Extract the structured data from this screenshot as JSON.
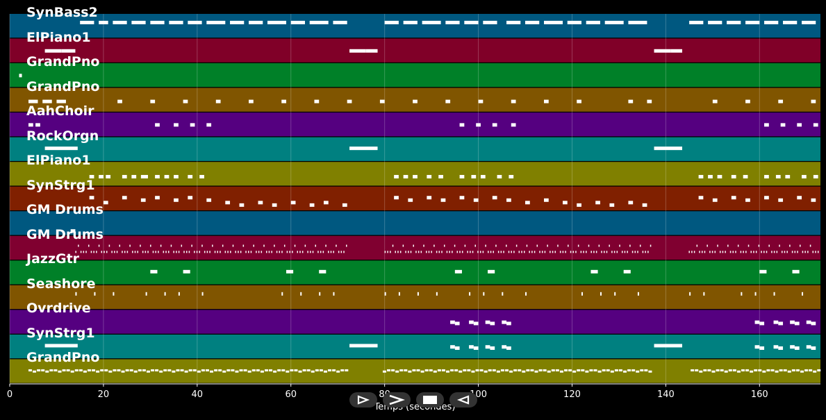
{
  "chart_data": {
    "type": "piano-roll",
    "xlabel": "Temps (secondes)",
    "xlim": [
      0,
      173
    ],
    "xticks": [
      0,
      20,
      40,
      60,
      80,
      100,
      120,
      140,
      160
    ],
    "grid": true,
    "tracks": [
      {
        "name": "SynBass2",
        "color": "#005880",
        "notes": [
          [
            15,
            18,
            0.65
          ],
          [
            19,
            21,
            0.65
          ],
          [
            22,
            25,
            0.65
          ],
          [
            26,
            29,
            0.65
          ],
          [
            30,
            33,
            0.65
          ],
          [
            34,
            37,
            0.65
          ],
          [
            38,
            41,
            0.65
          ],
          [
            42,
            46,
            0.65
          ],
          [
            47,
            50,
            0.65
          ],
          [
            51,
            54,
            0.65
          ],
          [
            55,
            59,
            0.65
          ],
          [
            60,
            63,
            0.65
          ],
          [
            64,
            68,
            0.65
          ],
          [
            69,
            72,
            0.65
          ],
          [
            80,
            83,
            0.65
          ],
          [
            84,
            87,
            0.65
          ],
          [
            88,
            92,
            0.65
          ],
          [
            93,
            96,
            0.65
          ],
          [
            97,
            100,
            0.65
          ],
          [
            101,
            104,
            0.65
          ],
          [
            106,
            109,
            0.65
          ],
          [
            110,
            113,
            0.65
          ],
          [
            114,
            118,
            0.65
          ],
          [
            119,
            122,
            0.65
          ],
          [
            123,
            126,
            0.65
          ],
          [
            127,
            131,
            0.65
          ],
          [
            132,
            136,
            0.65
          ],
          [
            145,
            148,
            0.65
          ],
          [
            149,
            152,
            0.65
          ],
          [
            153,
            156,
            0.65
          ],
          [
            157,
            160,
            0.65
          ],
          [
            161,
            164,
            0.65
          ],
          [
            165,
            168,
            0.65
          ],
          [
            169,
            172,
            0.65
          ]
        ]
      },
      {
        "name": "ElPiano1",
        "color": "#800028",
        "notes": [
          [
            7.5,
            11,
            0.5
          ],
          [
            11,
            14,
            0.5
          ],
          [
            72.5,
            76,
            0.5
          ],
          [
            76,
            78.5,
            0.5
          ],
          [
            137.5,
            141,
            0.5
          ],
          [
            141,
            143.5,
            0.5
          ]
        ]
      },
      {
        "name": "GrandPno",
        "color": "#008028",
        "notes": [
          [
            2,
            2.6,
            0.5
          ]
        ]
      },
      {
        "name": "GrandPno",
        "color": "#805500",
        "notes": [
          [
            4,
            6,
            0.45
          ],
          [
            7,
            9,
            0.45
          ],
          [
            10,
            12,
            0.45
          ],
          [
            23,
            24,
            0.45
          ],
          [
            30,
            31,
            0.45
          ],
          [
            37,
            38,
            0.45
          ],
          [
            44,
            45,
            0.45
          ],
          [
            51,
            52,
            0.45
          ],
          [
            58,
            59,
            0.45
          ],
          [
            65,
            66,
            0.45
          ],
          [
            72,
            73,
            0.45
          ],
          [
            79,
            80,
            0.45
          ],
          [
            86,
            87,
            0.45
          ],
          [
            93,
            94,
            0.45
          ],
          [
            100,
            101,
            0.45
          ],
          [
            107,
            108,
            0.45
          ],
          [
            114,
            115,
            0.45
          ],
          [
            121,
            122,
            0.45
          ],
          [
            132,
            133,
            0.45
          ],
          [
            136,
            137,
            0.45
          ],
          [
            150,
            151,
            0.45
          ],
          [
            157,
            158,
            0.45
          ],
          [
            164,
            165,
            0.45
          ],
          [
            171,
            172,
            0.45
          ]
        ]
      },
      {
        "name": "AahChoir",
        "color": "#550080",
        "notes": [
          [
            4,
            5,
            0.5
          ],
          [
            5.5,
            6.5,
            0.5
          ],
          [
            31,
            32,
            0.5
          ],
          [
            35,
            36,
            0.5
          ],
          [
            38.5,
            39.5,
            0.5
          ],
          [
            42,
            43,
            0.5
          ],
          [
            96,
            97,
            0.5
          ],
          [
            99.5,
            100.5,
            0.5
          ],
          [
            103,
            104,
            0.5
          ],
          [
            107,
            108,
            0.5
          ],
          [
            161,
            162,
            0.5
          ],
          [
            164.5,
            165.5,
            0.5
          ],
          [
            168,
            169,
            0.5
          ],
          [
            171.5,
            172.5,
            0.5
          ]
        ]
      },
      {
        "name": "RockOrgn",
        "color": "#008080",
        "notes": [
          [
            7.5,
            14.5,
            0.55
          ],
          [
            72.5,
            78.5,
            0.55
          ],
          [
            137.5,
            143.5,
            0.55
          ]
        ]
      },
      {
        "name": "ElPiano1",
        "color": "#808000",
        "notes": [
          [
            17,
            18,
            0.4
          ],
          [
            19,
            20,
            0.4
          ],
          [
            20.5,
            21.5,
            0.4
          ],
          [
            24,
            25,
            0.4
          ],
          [
            26,
            27,
            0.4
          ],
          [
            28,
            29.5,
            0.4
          ],
          [
            31,
            32,
            0.4
          ],
          [
            33,
            34,
            0.4
          ],
          [
            35,
            36,
            0.4
          ],
          [
            38,
            39,
            0.4
          ],
          [
            40.5,
            41.5,
            0.4
          ],
          [
            82,
            83,
            0.4
          ],
          [
            84,
            85,
            0.4
          ],
          [
            86,
            87,
            0.4
          ],
          [
            89,
            90,
            0.4
          ],
          [
            91.5,
            92.5,
            0.4
          ],
          [
            96,
            97,
            0.4
          ],
          [
            98.5,
            99.5,
            0.4
          ],
          [
            100.5,
            101.5,
            0.4
          ],
          [
            104,
            105,
            0.4
          ],
          [
            106.5,
            107.5,
            0.4
          ],
          [
            147,
            148,
            0.4
          ],
          [
            149,
            150,
            0.4
          ],
          [
            151,
            152,
            0.4
          ],
          [
            154,
            155,
            0.4
          ],
          [
            156.5,
            157.5,
            0.4
          ],
          [
            161,
            162,
            0.4
          ],
          [
            163.5,
            164.5,
            0.4
          ],
          [
            165.5,
            166.5,
            0.4
          ],
          [
            169,
            170,
            0.4
          ],
          [
            171.5,
            172.5,
            0.4
          ]
        ]
      },
      {
        "name": "SynStrg1",
        "color": "#802000",
        "notes": [
          [
            17,
            18,
            0.55
          ],
          [
            20,
            21,
            0.35
          ],
          [
            24,
            25,
            0.55
          ],
          [
            28,
            29,
            0.45
          ],
          [
            31,
            32,
            0.55
          ],
          [
            35,
            36,
            0.45
          ],
          [
            38,
            39,
            0.55
          ],
          [
            42,
            43,
            0.45
          ],
          [
            46,
            47,
            0.35
          ],
          [
            49,
            50,
            0.25
          ],
          [
            53,
            54,
            0.35
          ],
          [
            56,
            57,
            0.25
          ],
          [
            60,
            61,
            0.35
          ],
          [
            64,
            65,
            0.25
          ],
          [
            67,
            68,
            0.35
          ],
          [
            71,
            72,
            0.25
          ],
          [
            82,
            83,
            0.55
          ],
          [
            85,
            86,
            0.45
          ],
          [
            89,
            90,
            0.55
          ],
          [
            92,
            93,
            0.45
          ],
          [
            96,
            97,
            0.55
          ],
          [
            99,
            100,
            0.45
          ],
          [
            103,
            104,
            0.55
          ],
          [
            106,
            107,
            0.45
          ],
          [
            110,
            111,
            0.35
          ],
          [
            114,
            115,
            0.45
          ],
          [
            118,
            119,
            0.35
          ],
          [
            121,
            122,
            0.25
          ],
          [
            125,
            126,
            0.35
          ],
          [
            128,
            129,
            0.25
          ],
          [
            132,
            133,
            0.35
          ],
          [
            135,
            136,
            0.25
          ],
          [
            147,
            148,
            0.55
          ],
          [
            150,
            151,
            0.45
          ],
          [
            154,
            155,
            0.55
          ],
          [
            157,
            158,
            0.45
          ],
          [
            161,
            162,
            0.55
          ],
          [
            164,
            165,
            0.45
          ],
          [
            168,
            169,
            0.55
          ],
          [
            171,
            172,
            0.45
          ]
        ]
      },
      {
        "name": "GM Drums",
        "color": "#005880",
        "notes": [
          [
            13,
            14,
            0.2
          ]
        ]
      },
      {
        "name": "GM Drums",
        "color": "#800030",
        "notes": []
      },
      {
        "name": "JazzGtr",
        "color": "#008028",
        "notes": [
          [
            30,
            31.5,
            0.55
          ],
          [
            37,
            38.5,
            0.55
          ],
          [
            59,
            60.5,
            0.55
          ],
          [
            66,
            67.5,
            0.55
          ],
          [
            95,
            96.5,
            0.55
          ],
          [
            102,
            103.5,
            0.55
          ],
          [
            124,
            125.5,
            0.55
          ],
          [
            131,
            132.5,
            0.55
          ],
          [
            160,
            161.5,
            0.55
          ],
          [
            167,
            168.5,
            0.55
          ]
        ]
      },
      {
        "name": "Seashore",
        "color": "#805500",
        "notes": [
          [
            14,
            14.3,
            0.65
          ],
          [
            18,
            18.3,
            0.65
          ],
          [
            22,
            22.3,
            0.65
          ],
          [
            29,
            29.3,
            0.65
          ],
          [
            33,
            33.3,
            0.65
          ],
          [
            36,
            36.3,
            0.65
          ],
          [
            41,
            41.3,
            0.65
          ],
          [
            58,
            58.3,
            0.65
          ],
          [
            62,
            62.3,
            0.65
          ],
          [
            66,
            66.3,
            0.65
          ],
          [
            69,
            69.3,
            0.65
          ],
          [
            80,
            80.3,
            0.65
          ],
          [
            83,
            83.3,
            0.65
          ],
          [
            87,
            87.3,
            0.65
          ],
          [
            91,
            91.3,
            0.65
          ],
          [
            98,
            98.3,
            0.65
          ],
          [
            101,
            101.3,
            0.65
          ],
          [
            105,
            105.3,
            0.65
          ],
          [
            110,
            110.3,
            0.65
          ],
          [
            122,
            122.3,
            0.65
          ],
          [
            126,
            126.3,
            0.65
          ],
          [
            129,
            129.3,
            0.65
          ],
          [
            134,
            134.3,
            0.65
          ],
          [
            145,
            145.3,
            0.65
          ],
          [
            148,
            148.3,
            0.65
          ],
          [
            156,
            156.3,
            0.65
          ],
          [
            159,
            159.3,
            0.65
          ],
          [
            163,
            163.3,
            0.65
          ],
          [
            169,
            169.3,
            0.65
          ]
        ]
      },
      {
        "name": "Ovrdrive",
        "color": "#550080",
        "notes": [
          [
            94,
            95,
            0.5
          ],
          [
            95,
            96,
            0.45
          ],
          [
            98,
            99,
            0.5
          ],
          [
            99,
            100,
            0.45
          ],
          [
            101.5,
            102.5,
            0.5
          ],
          [
            102.5,
            103.5,
            0.45
          ],
          [
            105,
            106,
            0.5
          ],
          [
            106,
            107,
            0.45
          ],
          [
            159,
            160,
            0.5
          ],
          [
            160,
            161,
            0.45
          ],
          [
            163,
            164,
            0.5
          ],
          [
            164,
            165,
            0.45
          ],
          [
            166.5,
            167.5,
            0.5
          ],
          [
            167.5,
            168.5,
            0.45
          ],
          [
            170,
            171,
            0.5
          ],
          [
            171,
            172,
            0.45
          ]
        ]
      },
      {
        "name": "SynStrg1",
        "color": "#008080",
        "notes": [
          [
            7.5,
            14.5,
            0.55
          ],
          [
            72.5,
            78.5,
            0.55
          ],
          [
            137.5,
            143.5,
            0.55
          ],
          [
            94,
            95,
            0.5
          ],
          [
            95,
            96,
            0.45
          ],
          [
            98,
            99,
            0.5
          ],
          [
            99,
            100,
            0.45
          ],
          [
            101.5,
            102.5,
            0.5
          ],
          [
            102.5,
            103.5,
            0.45
          ],
          [
            105,
            106,
            0.5
          ],
          [
            106,
            107,
            0.45
          ],
          [
            159,
            160,
            0.5
          ],
          [
            160,
            161,
            0.45
          ],
          [
            163,
            164,
            0.5
          ],
          [
            164,
            165,
            0.45
          ],
          [
            166.5,
            167.5,
            0.5
          ],
          [
            167.5,
            168.5,
            0.45
          ],
          [
            170,
            171,
            0.5
          ],
          [
            171,
            172,
            0.45
          ]
        ]
      },
      {
        "name": "GrandPno",
        "color": "#808000",
        "notes": []
      }
    ]
  },
  "controls": {
    "rewind_icon": "rewind-icon",
    "play_icon": "play-icon",
    "stop_icon": "stop-icon",
    "back_icon": "back-icon"
  }
}
